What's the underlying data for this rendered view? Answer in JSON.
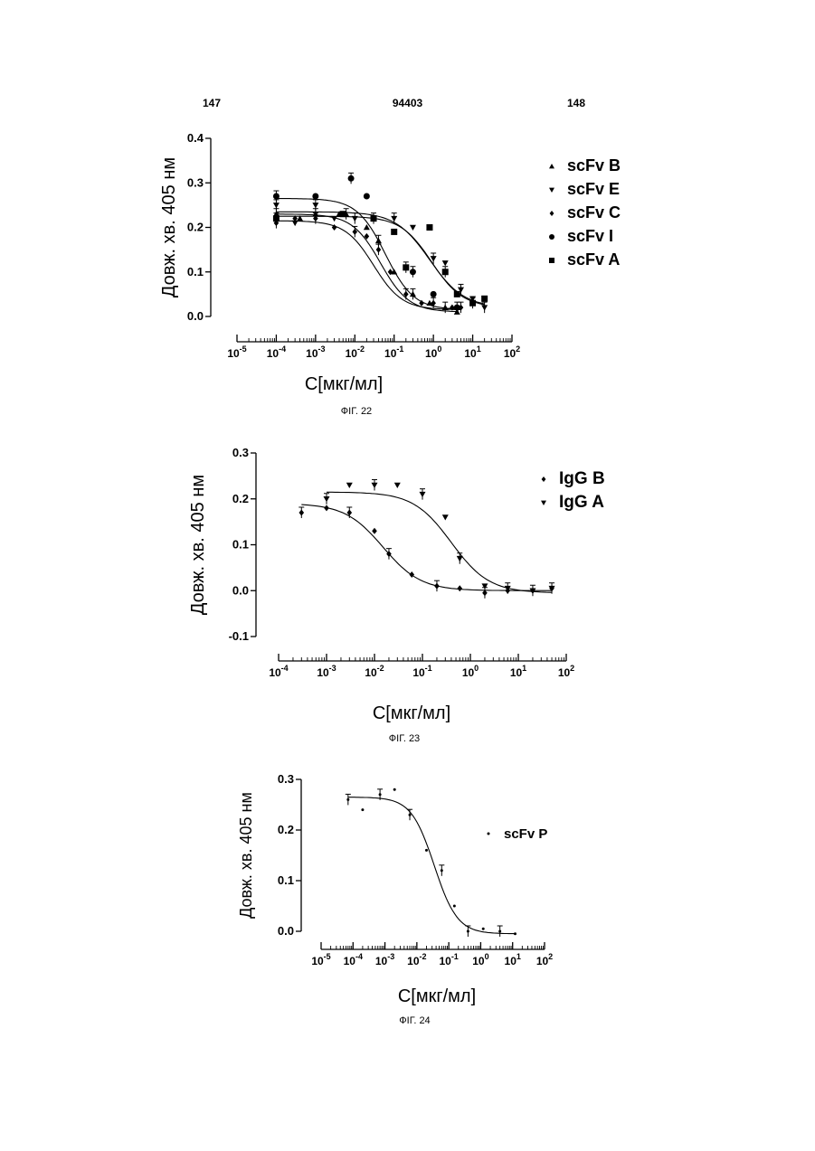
{
  "page": {
    "left_number": "147",
    "doc_number": "94403",
    "right_number": "148"
  },
  "chart_data": [
    {
      "type": "scatter",
      "caption": "ФІГ. 22",
      "xlabel": "C[мкг/мл]",
      "ylabel": "Довж. хв. 405 нм",
      "xscale": "log",
      "xlim": [
        1e-05,
        100
      ],
      "ylim": [
        0.0,
        0.4
      ],
      "yticks": [
        "0.0",
        "0.1",
        "0.2",
        "0.3",
        "0.4"
      ],
      "xticks": [
        {
          "base": "10",
          "exp": "-5"
        },
        {
          "base": "10",
          "exp": "-4"
        },
        {
          "base": "10",
          "exp": "-3"
        },
        {
          "base": "10",
          "exp": "-2"
        },
        {
          "base": "10",
          "exp": "-1"
        },
        {
          "base": "10",
          "exp": "0"
        },
        {
          "base": "10",
          "exp": "1"
        },
        {
          "base": "10",
          "exp": "2"
        }
      ],
      "legend_position": "right",
      "series": [
        {
          "name": "scFv B",
          "marker": "triangle-up",
          "x": [
            0.0001,
            0.0004,
            0.001,
            0.004,
            0.006,
            0.02,
            0.04,
            0.1,
            0.3,
            0.8,
            2,
            4
          ],
          "y": [
            0.23,
            0.22,
            0.23,
            0.23,
            0.23,
            0.2,
            0.17,
            0.1,
            0.05,
            0.03,
            0.02,
            0.01
          ],
          "curve": {
            "top": 0.23,
            "bottom": 0.01,
            "ec50": 0.045,
            "hill": 1.2
          }
        },
        {
          "name": "scFv E",
          "marker": "triangle-down",
          "x": [
            0.0001,
            0.0003,
            0.001,
            0.003,
            0.01,
            0.03,
            0.1,
            0.3,
            1,
            2,
            5,
            10,
            20
          ],
          "y": [
            0.25,
            0.21,
            0.25,
            0.22,
            0.22,
            0.22,
            0.22,
            0.2,
            0.13,
            0.12,
            0.06,
            0.04,
            0.02
          ],
          "curve": {
            "top": 0.235,
            "bottom": 0.02,
            "ec50": 0.8,
            "hill": 1.0
          }
        },
        {
          "name": "scFv C",
          "marker": "diamond",
          "x": [
            0.0001,
            0.0003,
            0.001,
            0.003,
            0.01,
            0.02,
            0.04,
            0.08,
            0.2,
            0.5,
            1,
            3,
            5
          ],
          "y": [
            0.21,
            0.22,
            0.22,
            0.2,
            0.19,
            0.18,
            0.15,
            0.1,
            0.05,
            0.03,
            0.03,
            0.02,
            0.02
          ],
          "curve": {
            "top": 0.215,
            "bottom": 0.015,
            "ec50": 0.03,
            "hill": 1.2
          }
        },
        {
          "name": "scFv I",
          "marker": "circle",
          "x": [
            0.0001,
            0.001,
            0.008,
            0.02,
            0.3,
            1,
            4
          ],
          "y": [
            0.27,
            0.27,
            0.31,
            0.27,
            0.1,
            0.05,
            0.02
          ],
          "curve": {
            "top": 0.265,
            "bottom": 0.015,
            "ec50": 0.06,
            "hill": 1.2
          }
        },
        {
          "name": "scFv A",
          "marker": "square",
          "x": [
            0.0001,
            0.005,
            0.03,
            0.1,
            0.2,
            0.8,
            2,
            4,
            10,
            20
          ],
          "y": [
            0.22,
            0.23,
            0.22,
            0.19,
            0.11,
            0.2,
            0.1,
            0.05,
            0.03,
            0.04
          ],
          "curve": {
            "top": 0.225,
            "bottom": 0.02,
            "ec50": 0.9,
            "hill": 1.1
          }
        }
      ]
    },
    {
      "type": "scatter",
      "caption": "ФІГ. 23",
      "xlabel": "C[мкг/мл]",
      "ylabel": "Довж. хв. 405 нм",
      "xscale": "log",
      "xlim": [
        0.0001,
        100
      ],
      "ylim": [
        -0.1,
        0.3
      ],
      "yticks": [
        "-0.1",
        "0.0",
        "0.1",
        "0.2",
        "0.3"
      ],
      "xticks": [
        {
          "base": "10",
          "exp": "-4"
        },
        {
          "base": "10",
          "exp": "-3"
        },
        {
          "base": "10",
          "exp": "-2"
        },
        {
          "base": "10",
          "exp": "-1"
        },
        {
          "base": "10",
          "exp": "0"
        },
        {
          "base": "10",
          "exp": "1"
        },
        {
          "base": "10",
          "exp": "2"
        }
      ],
      "legend_position": "right",
      "series": [
        {
          "name": "IgG B",
          "marker": "diamond",
          "x": [
            0.0003,
            0.001,
            0.003,
            0.01,
            0.02,
            0.06,
            0.2,
            0.6,
            2,
            6,
            20,
            50
          ],
          "y": [
            0.17,
            0.18,
            0.17,
            0.13,
            0.08,
            0.035,
            0.01,
            0.005,
            -0.005,
            0.0,
            0.0,
            0.005
          ],
          "curve": {
            "top": 0.19,
            "bottom": 0.0,
            "ec50": 0.015,
            "hill": 1.1
          }
        },
        {
          "name": "IgG A",
          "marker": "triangle-down",
          "x": [
            0.001,
            0.003,
            0.01,
            0.03,
            0.1,
            0.3,
            0.6,
            2,
            6,
            20,
            50
          ],
          "y": [
            0.2,
            0.23,
            0.23,
            0.23,
            0.21,
            0.16,
            0.07,
            0.01,
            0.005,
            0.0,
            0.005
          ],
          "curve": {
            "top": 0.215,
            "bottom": -0.005,
            "ec50": 0.4,
            "hill": 1.1
          }
        }
      ]
    },
    {
      "type": "scatter",
      "caption": "ФІГ. 24",
      "xlabel": "C[мкг/мл]",
      "ylabel": "Довж. хв. 405 нм",
      "xscale": "log",
      "xlim": [
        1e-05,
        100
      ],
      "ylim": [
        -0.05,
        0.3
      ],
      "yticks": [
        "0.0",
        "0.1",
        "0.2",
        "0.3"
      ],
      "xticks": [
        {
          "base": "10",
          "exp": "-5"
        },
        {
          "base": "10",
          "exp": "-4"
        },
        {
          "base": "10",
          "exp": "-3"
        },
        {
          "base": "10",
          "exp": "-2"
        },
        {
          "base": "10",
          "exp": "-1"
        },
        {
          "base": "10",
          "exp": "0"
        },
        {
          "base": "10",
          "exp": "1"
        },
        {
          "base": "10",
          "exp": "2"
        }
      ],
      "legend_position": "right",
      "series": [
        {
          "name": "scFv P",
          "marker": "dot",
          "x": [
            7e-05,
            0.0002,
            0.0007,
            0.002,
            0.006,
            0.02,
            0.06,
            0.15,
            0.4,
            1.2,
            4,
            12
          ],
          "y": [
            0.26,
            0.24,
            0.27,
            0.28,
            0.23,
            0.16,
            0.12,
            0.05,
            0.0,
            0.005,
            0.0,
            -0.005
          ],
          "curve": {
            "top": 0.265,
            "bottom": -0.005,
            "ec50": 0.035,
            "hill": 1.2
          }
        }
      ]
    }
  ]
}
